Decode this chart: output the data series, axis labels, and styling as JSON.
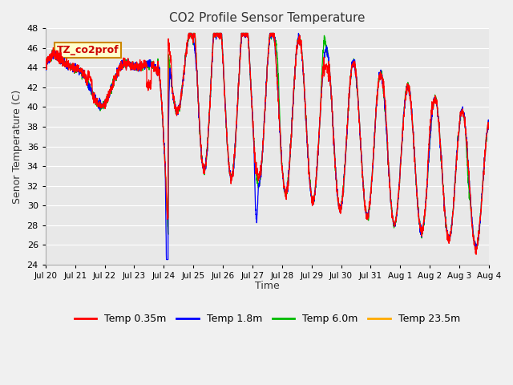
{
  "title": "CO2 Profile Sensor Temperature",
  "ylabel": "Senor Temperature (C)",
  "xlabel": "Time",
  "ylim": [
    24,
    48
  ],
  "yticks": [
    24,
    26,
    28,
    30,
    32,
    34,
    36,
    38,
    40,
    42,
    44,
    46,
    48
  ],
  "xtick_labels": [
    "Jul 20",
    "Jul 21",
    "Jul 22",
    "Jul 23",
    "Jul 24",
    "Jul 25",
    "Jul 26",
    "Jul 27",
    "Jul 28",
    "Jul 29",
    "Jul 30",
    "Jul 31",
    "Aug 1",
    "Aug 2",
    "Aug 3",
    "Aug 4"
  ],
  "annotation_text": "TZ_co2prof",
  "colors": {
    "red": "#ff0000",
    "blue": "#0000ff",
    "green": "#00bb00",
    "orange": "#ffaa00"
  },
  "legend_labels": [
    "Temp 0.35m",
    "Temp 1.8m",
    "Temp 6.0m",
    "Temp 23.5m"
  ],
  "bg_color": "#e8e8e8",
  "grid_color": "#ffffff",
  "fig_bg": "#f0f0f0"
}
